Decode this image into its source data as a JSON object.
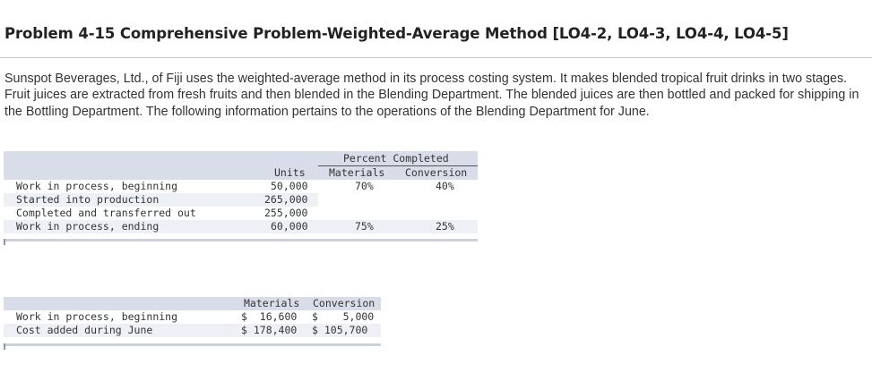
{
  "title": "Problem 4-15 Comprehensive Problem-Weighted-Average Method [LO4-2, LO4-3, LO4-4, LO4-5]",
  "intro": "Sunspot Beverages, Ltd., of Fiji uses the weighted-average method in its process costing system. It makes blended tropical fruit drinks in two stages. Fruit juices are extracted from fresh fruits and then blended in the Blending Department. The blended juices are then bottled and packed for shipping in the Bottling Department. The following information pertains to the operations of the Blending Department for June.",
  "units_table": {
    "group_header": "Percent Completed",
    "col_units": "Units",
    "col_materials": "Materials",
    "col_conversion": "Conversion",
    "rows": [
      {
        "label": "Work in process, beginning",
        "units": "50,000",
        "materials": "70%",
        "conversion": "40%"
      },
      {
        "label": "Started into production",
        "units": "265,000",
        "materials": "",
        "conversion": ""
      },
      {
        "label": "Completed and transferred out",
        "units": "255,000",
        "materials": "",
        "conversion": ""
      },
      {
        "label": "Work in process, ending",
        "units": "60,000",
        "materials": "75%",
        "conversion": "25%"
      }
    ]
  },
  "cost_table": {
    "col_materials": "Materials",
    "col_conversion": "Conversion",
    "rows": [
      {
        "label": "Work in process, beginning",
        "materials": "$  16,600",
        "conversion": "$    5,000"
      },
      {
        "label": "Cost added during June",
        "materials": "$ 178,400",
        "conversion": "$ 105,700"
      }
    ]
  }
}
